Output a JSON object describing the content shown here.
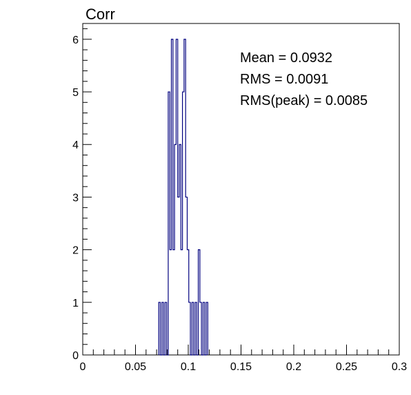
{
  "chart_data": {
    "type": "histogram",
    "title": "Corr",
    "xlabel": "",
    "ylabel": "",
    "xlim": [
      0,
      0.3
    ],
    "ylim": [
      0,
      6.3
    ],
    "bin_width": 0.0015,
    "bins": [
      {
        "x": 0.072,
        "y": 1
      },
      {
        "x": 0.075,
        "y": 1
      },
      {
        "x": 0.078,
        "y": 1
      },
      {
        "x": 0.081,
        "y": 5
      },
      {
        "x": 0.0825,
        "y": 2
      },
      {
        "x": 0.084,
        "y": 6
      },
      {
        "x": 0.0855,
        "y": 2
      },
      {
        "x": 0.087,
        "y": 4
      },
      {
        "x": 0.0885,
        "y": 6
      },
      {
        "x": 0.09,
        "y": 3
      },
      {
        "x": 0.0915,
        "y": 4
      },
      {
        "x": 0.093,
        "y": 2
      },
      {
        "x": 0.0945,
        "y": 5
      },
      {
        "x": 0.096,
        "y": 6
      },
      {
        "x": 0.0975,
        "y": 3
      },
      {
        "x": 0.099,
        "y": 2
      },
      {
        "x": 0.1005,
        "y": 1
      },
      {
        "x": 0.1035,
        "y": 1
      },
      {
        "x": 0.1065,
        "y": 1
      },
      {
        "x": 0.1095,
        "y": 2
      },
      {
        "x": 0.111,
        "y": 1
      },
      {
        "x": 0.114,
        "y": 1
      },
      {
        "x": 0.117,
        "y": 1
      }
    ],
    "x_ticks": [
      {
        "v": 0,
        "label": "0"
      },
      {
        "v": 0.05,
        "label": "0.05"
      },
      {
        "v": 0.1,
        "label": "0.1"
      },
      {
        "v": 0.15,
        "label": "0.15"
      },
      {
        "v": 0.2,
        "label": "0.2"
      },
      {
        "v": 0.25,
        "label": "0.25"
      },
      {
        "v": 0.3,
        "label": "0.3"
      }
    ],
    "y_ticks": [
      {
        "v": 0,
        "label": "0"
      },
      {
        "v": 1,
        "label": "1"
      },
      {
        "v": 2,
        "label": "2"
      },
      {
        "v": 3,
        "label": "3"
      },
      {
        "v": 4,
        "label": "4"
      },
      {
        "v": 5,
        "label": "5"
      },
      {
        "v": 6,
        "label": "6"
      }
    ],
    "stats": [
      "Mean = 0.0932",
      "RMS = 0.0091",
      "RMS(peak) = 0.0085"
    ],
    "colors": {
      "line": "#00007f",
      "axis": "#000000",
      "background": "#ffffff"
    }
  }
}
